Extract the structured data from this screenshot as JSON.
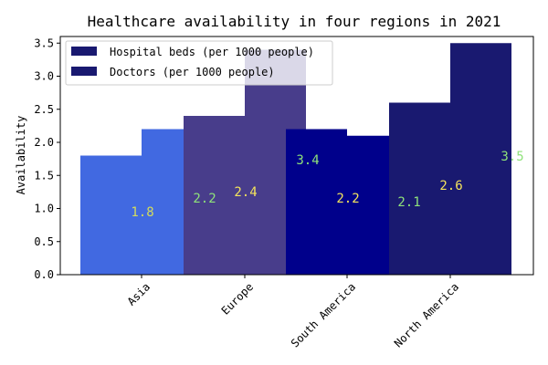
{
  "chart_data": {
    "type": "bar",
    "title": "Healthcare availability in four regions in 2021",
    "xlabel": "",
    "ylabel": "Availability",
    "categories": [
      "Asia",
      "Europe",
      "South America",
      "North America"
    ],
    "series": [
      {
        "name": "Hospital beds (per 1000 people)",
        "values": [
          1.8,
          2.4,
          2.2,
          2.6
        ]
      },
      {
        "name": "Doctors (per 1000 people)",
        "values": [
          2.2,
          3.4,
          2.1,
          3.5
        ]
      }
    ],
    "ylim": [
      0,
      3.6
    ],
    "yticks": [
      "0.0",
      "0.5",
      "1.0",
      "1.5",
      "2.0",
      "2.5",
      "3.0",
      "3.5"
    ],
    "data_labels": [
      "1.8",
      "2.2",
      "2.4",
      "3.4",
      "2.2",
      "2.1",
      "2.6",
      "3.5"
    ],
    "grid": false,
    "legend_position": "upper-left",
    "colors": {
      "legend_swatch": "#191970",
      "bar_fills": [
        "#4169e1",
        "#4169e1",
        "#483d8b",
        "#483d8b",
        "#00008b",
        "#00008b",
        "#191970",
        "#191970"
      ],
      "label_fills": [
        "#d4dc5c",
        "#8fe27a",
        "#f4e45c",
        "#8fe27a",
        "#f4e45c",
        "#8fe27a",
        "#f4e45c",
        "#8fe27a"
      ]
    }
  }
}
